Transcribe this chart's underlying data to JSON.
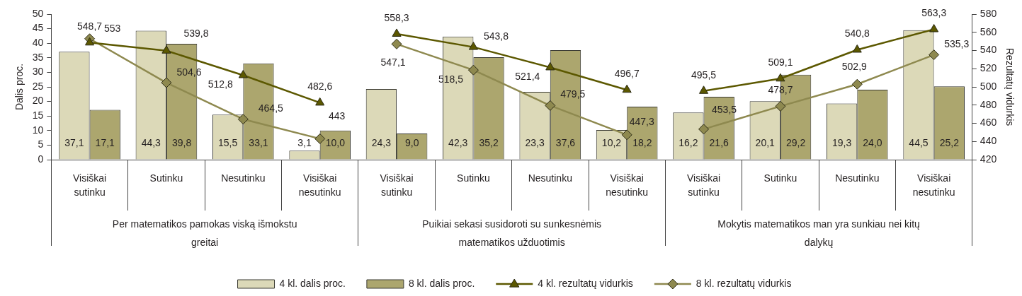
{
  "chart_data": {
    "type": "bar",
    "categories": [
      "Visiškai sutinku",
      "Sutinku",
      "Nesutinku",
      "Visiškai nesutinku",
      "Visiškai sutinku",
      "Sutinku",
      "Nesutinku",
      "Visiškai nesutinku",
      "Visiškai sutinku",
      "Sutinku",
      "Nesutinku",
      "Visiškai nesutinku"
    ],
    "annotations": [
      "Per matematikos pamokas viską išmokstu greitai",
      "Puikiai sekasi susidoroti su sunkesnėmis matematikos užduotimis",
      "Mokytis matematikos man yra sunkiau nei kitų dalykų"
    ],
    "ylabel": "Dalis proc.",
    "y2label": "Rezultatų vidurkis",
    "ylim": [
      0,
      50
    ],
    "yticks": [
      0,
      5,
      10,
      15,
      20,
      25,
      30,
      35,
      40,
      45,
      50
    ],
    "y2lim": [
      420,
      580
    ],
    "y2ticks": [
      420,
      440,
      460,
      480,
      500,
      520,
      540,
      560,
      580
    ],
    "legend": "bottom",
    "series": [
      {
        "name": "4 kl. dalis proc.",
        "color": "#dcd9b8",
        "values": [
          37.1,
          44.3,
          15.5,
          3.1,
          24.3,
          42.3,
          23.3,
          10.2,
          16.2,
          20.1,
          19.3,
          44.5
        ],
        "value_labels": [
          "37,1",
          "44,3",
          "15,5",
          "3,1",
          "24,3",
          "42,3",
          "23,3",
          "10,2",
          "16,2",
          "20,1",
          "19,3",
          "44,5"
        ]
      },
      {
        "name": "8 kl. dalis proc.",
        "color": "#aca66e",
        "values": [
          17.1,
          39.8,
          33.1,
          10.0,
          9.0,
          35.2,
          37.6,
          18.2,
          21.6,
          29.2,
          24.0,
          25.2
        ],
        "value_labels": [
          "17,1",
          "39,8",
          "33,1",
          "10,0",
          "9,0",
          "35,2",
          "37,6",
          "18,2",
          "21,6",
          "29,2",
          "24,0",
          "25,2"
        ]
      },
      {
        "name": "4 kl. rezultatų vidurkis",
        "type": "line",
        "axis": "y2",
        "marker": "triangle",
        "color": "#5c5800",
        "values": [
          548.7,
          539.8,
          512.8,
          482.6,
          558.3,
          543.8,
          521.4,
          496.7,
          495.5,
          509.1,
          540.8,
          563.3
        ],
        "value_labels": [
          "548,7",
          "539,8",
          "512,8",
          "482,6",
          "558,3",
          "543,8",
          "521,4",
          "496,7",
          "495,5",
          "509,1",
          "540,8",
          "563,3"
        ]
      },
      {
        "name": "8 kl. rezultatų vidurkis",
        "type": "line",
        "axis": "y2",
        "marker": "diamond",
        "color": "#8e894f",
        "values": [
          553,
          504.6,
          464.5,
          443,
          547.1,
          518.5,
          479.5,
          447.3,
          453.5,
          478.7,
          502.9,
          535.3
        ],
        "value_labels": [
          "553",
          "504,6",
          "464,5",
          "443",
          "547,1",
          "518,5",
          "479,5",
          "447,3",
          "453,5",
          "478,7",
          "502,9",
          "535,3"
        ]
      }
    ]
  }
}
